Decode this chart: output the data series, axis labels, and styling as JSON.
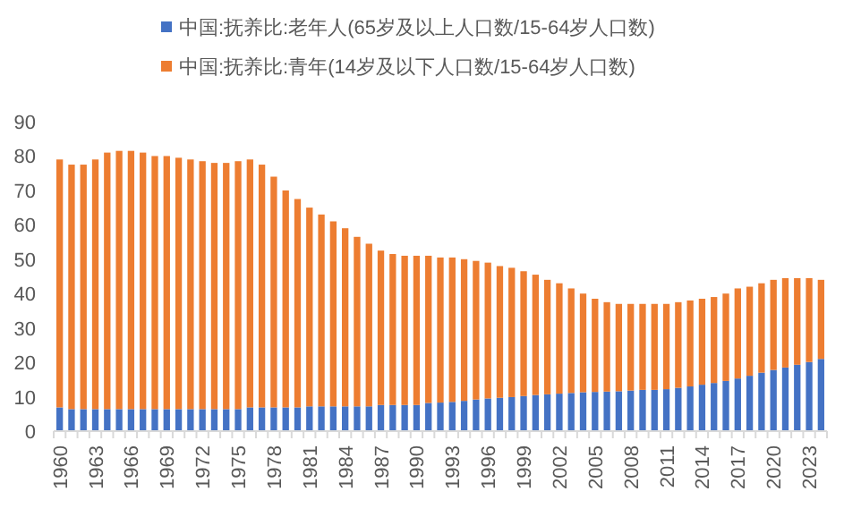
{
  "chart_data": {
    "type": "bar",
    "stacked": true,
    "categories": [
      "1960",
      null,
      null,
      "1963",
      null,
      null,
      "1966",
      null,
      null,
      "1969",
      null,
      null,
      "1972",
      null,
      null,
      "1975",
      null,
      null,
      "1978",
      null,
      null,
      "1981",
      null,
      null,
      "1984",
      null,
      null,
      "1987",
      null,
      null,
      "1990",
      null,
      null,
      "1993",
      null,
      null,
      "1996",
      null,
      null,
      "1999",
      null,
      null,
      "2002",
      null,
      null,
      "2005",
      null,
      null,
      "2008",
      null,
      null,
      "2011",
      null,
      null,
      "2014",
      null,
      null,
      "2017",
      null,
      null,
      "2020",
      null,
      null,
      "2023",
      null
    ],
    "series": [
      {
        "name": "中国:抚养比:老年人(65岁及以上人口数/15-64岁人口数)",
        "color": "#4472c4",
        "values": [
          6.9,
          6.4,
          6.4,
          6.4,
          6.4,
          6.4,
          6.4,
          6.4,
          6.4,
          6.4,
          6.4,
          6.4,
          6.4,
          6.4,
          6.4,
          6.4,
          6.9,
          6.9,
          6.9,
          6.9,
          6.9,
          7.2,
          7.2,
          7.2,
          7.2,
          7.2,
          7.2,
          7.6,
          7.6,
          7.6,
          7.6,
          8.2,
          8.3,
          8.5,
          8.8,
          9.2,
          9.5,
          9.7,
          9.9,
          10.2,
          10.5,
          10.7,
          10.9,
          11.1,
          11.3,
          11.4,
          11.5,
          11.6,
          11.8,
          12.0,
          12.0,
          12.2,
          12.6,
          13.0,
          13.5,
          14.0,
          14.6,
          15.3,
          16.1,
          17.0,
          17.8,
          18.5,
          19.3,
          20.1,
          21.0
        ]
      },
      {
        "name": "中国:抚养比:青年(14岁及以下人口数/15-64岁人口数)",
        "color": "#ed7d31",
        "values": [
          72.1,
          71.1,
          71.1,
          72.6,
          74.6,
          75.1,
          75.1,
          74.6,
          73.6,
          73.6,
          73.1,
          72.6,
          72.1,
          71.6,
          71.6,
          72.1,
          72.1,
          70.6,
          67.1,
          63.1,
          60.6,
          57.8,
          55.8,
          53.8,
          51.8,
          49.3,
          47.3,
          44.9,
          43.9,
          43.4,
          43.4,
          42.8,
          42.2,
          42.0,
          41.2,
          40.3,
          39.5,
          38.3,
          37.6,
          36.3,
          35.0,
          33.3,
          32.1,
          30.4,
          28.7,
          27.1,
          26.0,
          25.4,
          25.2,
          25.0,
          25.0,
          24.8,
          24.9,
          25.0,
          25.0,
          25.0,
          25.4,
          26.2,
          25.9,
          26.0,
          26.2,
          26.0,
          25.2,
          24.4,
          23.0
        ]
      }
    ],
    "ylim": [
      0,
      90
    ],
    "yticks": [
      0,
      10,
      20,
      30,
      40,
      50,
      60,
      70,
      80,
      90
    ],
    "grid": false,
    "legend": "top"
  }
}
